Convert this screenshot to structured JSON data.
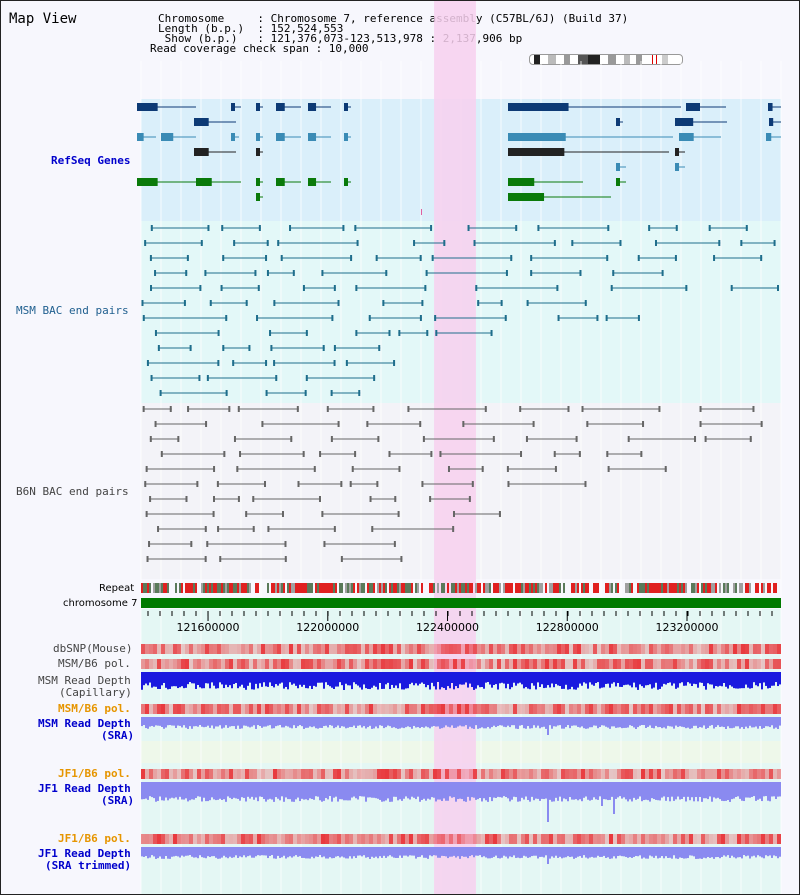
{
  "view": {
    "title": "Map View"
  },
  "info": {
    "lines": [
      "Chromosome     : Chromosome 7, reference assembly (C57BL/6J) (Build 37)",
      "Length (b.p.)  : 152,524,553",
      " Show (b.p.)   : 121,376,073-123,513,978 : 2,137,906 bp",
      "Read coverage check span : 10,000"
    ]
  },
  "tracks": {
    "refseq": "RefSeq Genes",
    "msm_bac": "MSM BAC end pairs",
    "b6n_bac": "B6N BAC end pairs",
    "repeat": "Repeat",
    "chromosome": "chromosome 7",
    "dbsnp": "dbSNP(Mouse)",
    "msm_b6_pol": "MSM/B6 pol.",
    "msm_depth_cap_1": "MSM Read Depth",
    "msm_depth_cap_2": "(Capillary)",
    "msm_b6_pol_2": "MSM/B6 pol.",
    "msm_depth_sra_1": "MSM Read Depth",
    "msm_depth_sra_2": "(SRA)",
    "jf1_b6_pol": "JF1/B6 pol.",
    "jf1_depth_sra_1": "JF1 Read Depth",
    "jf1_depth_sra_2": "(SRA)",
    "jf1_b6_pol_2": "JF1/B6 pol.",
    "jf1_depth_trim_1": "JF1 Read Depth",
    "jf1_depth_trim_2": "(SRA trimmed)"
  },
  "axis": {
    "range": [
      121376073,
      123513978
    ],
    "ticks": [
      "121600000",
      "122000000",
      "122400000",
      "122800000",
      "123200000"
    ],
    "tick_values": [
      121600000,
      122000000,
      122400000,
      122800000,
      123200000
    ]
  },
  "highlight": {
    "range": [
      122355000,
      122495000
    ],
    "color": "#f7d0ee"
  },
  "colors": {
    "refseq_bg": "#daeffa",
    "msm_bg": "#e3f8f8",
    "b6n_bg": "#f3f3f8",
    "gene_dark": "#0d3a75",
    "gene_mid": "#3a8bb5",
    "gene_green": "#0a7a0a",
    "bac_msm": "#1f6e8c",
    "bac_b6n": "#666666",
    "chromosome": "#007a00",
    "snp_red": "#e8383c",
    "depth_dark": "#1a1adf",
    "depth_light": "#8a8af0"
  }
}
